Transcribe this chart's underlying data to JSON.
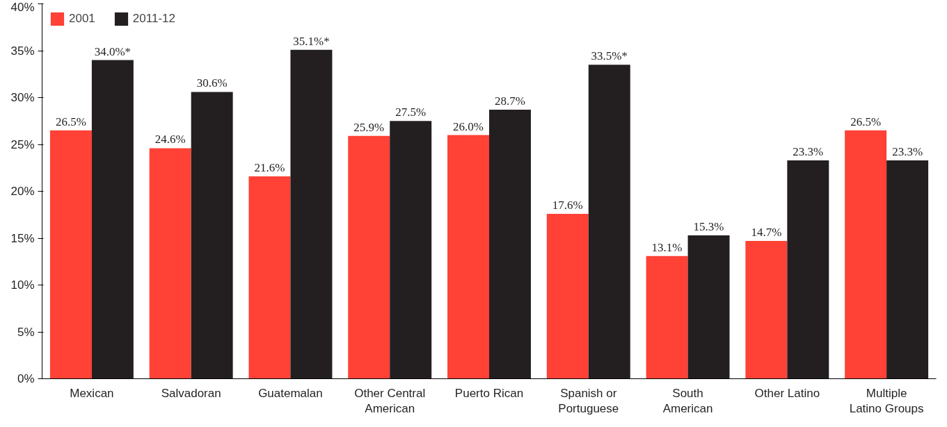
{
  "chart_data": {
    "type": "bar",
    "categories": [
      "Mexican",
      "Salvadoran",
      "Guatemalan",
      "Other Central\nAmerican",
      "Puerto Rican",
      "Spanish or\nPortuguese",
      "South\nAmerican",
      "Other Latino",
      "Multiple\nLatino Groups"
    ],
    "series": [
      {
        "name": "2001",
        "color": "#ff4136",
        "values": [
          26.5,
          24.6,
          21.6,
          25.9,
          26.0,
          17.6,
          13.1,
          14.7,
          26.5
        ],
        "value_labels": [
          "26.5%",
          "24.6%",
          "21.6%",
          "25.9%",
          "26.0%",
          "17.6%",
          "13.1%",
          "14.7%",
          "26.5%"
        ]
      },
      {
        "name": "2011-12",
        "color": "#231f20",
        "values": [
          34.0,
          30.6,
          35.1,
          27.5,
          28.7,
          33.5,
          15.3,
          23.3,
          23.3
        ],
        "value_labels": [
          "34.0%*",
          "30.6%",
          "35.1%*",
          "27.5%",
          "28.7%",
          "33.5%*",
          "15.3%",
          "23.3%",
          "23.3%"
        ]
      }
    ],
    "ylim": [
      0,
      40
    ],
    "yticks": [
      {
        "value": 0,
        "label": "0%"
      },
      {
        "value": 5,
        "label": "5%"
      },
      {
        "value": 10,
        "label": "10%"
      },
      {
        "value": 15,
        "label": "15%"
      },
      {
        "value": 20,
        "label": "20%"
      },
      {
        "value": 25,
        "label": "25%"
      },
      {
        "value": 30,
        "label": "30%"
      },
      {
        "value": 35,
        "label": "35%"
      },
      {
        "value": 40,
        "label": "40%"
      }
    ],
    "grid": false,
    "legend": "top left"
  }
}
